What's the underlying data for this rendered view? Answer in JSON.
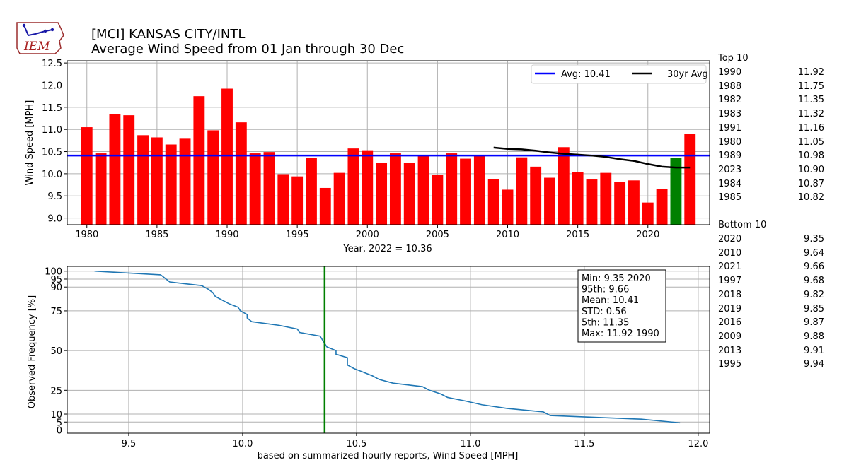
{
  "header": {
    "logo_text": "IEM",
    "title_line1": "[MCI] KANSAS CITY/INTL",
    "title_line2": "Average Wind Speed from 01 Jan through 30 Dec"
  },
  "colors": {
    "bar": "#ff0000",
    "highlight_bar": "#008000",
    "avg_line": "#0000ff",
    "avg30_line": "#000000",
    "cdf_line": "#1f77b4",
    "marker_line": "#008000"
  },
  "chart_data": [
    {
      "type": "bar",
      "ylabel": "Wind Speed [MPH]",
      "xlabel": "Year, 2022 = 10.36",
      "ylim": [
        8.85,
        12.55
      ],
      "xlim": [
        1978.6,
        2024.4
      ],
      "x_ticks": [
        1980,
        1985,
        1990,
        1995,
        2000,
        2005,
        2010,
        2015,
        2020
      ],
      "y_ticks": [
        9.0,
        9.5,
        10.0,
        10.5,
        11.0,
        11.5,
        12.0,
        12.5
      ],
      "grid": true,
      "legend_position": "top-right",
      "categories": [
        1980,
        1981,
        1982,
        1983,
        1984,
        1985,
        1986,
        1987,
        1988,
        1989,
        1990,
        1991,
        1992,
        1993,
        1994,
        1995,
        1996,
        1997,
        1998,
        1999,
        2000,
        2001,
        2002,
        2003,
        2004,
        2005,
        2006,
        2007,
        2008,
        2009,
        2010,
        2011,
        2012,
        2013,
        2014,
        2015,
        2016,
        2017,
        2018,
        2019,
        2020,
        2021,
        2022,
        2023
      ],
      "values": [
        11.05,
        10.46,
        11.35,
        11.32,
        10.87,
        10.82,
        10.66,
        10.79,
        11.75,
        10.98,
        11.92,
        11.16,
        10.46,
        10.49,
        9.99,
        9.94,
        10.35,
        9.68,
        10.02,
        10.57,
        10.53,
        10.25,
        10.46,
        10.24,
        10.41,
        9.98,
        10.46,
        10.34,
        10.41,
        9.88,
        9.64,
        10.37,
        10.16,
        9.91,
        10.6,
        10.04,
        9.87,
        10.02,
        9.82,
        9.85,
        9.35,
        9.66,
        10.36,
        10.9
      ],
      "highlight": {
        "year": 2022,
        "value": 10.36
      },
      "average": {
        "label": "Avg: 10.41",
        "value": 10.41
      },
      "series": [
        {
          "name": "30yr Avg",
          "x": [
            2009,
            2010,
            2011,
            2012,
            2013,
            2014,
            2015,
            2016,
            2017,
            2018,
            2019,
            2020,
            2021,
            2022,
            2023
          ],
          "values": [
            10.59,
            10.56,
            10.55,
            10.52,
            10.48,
            10.45,
            10.43,
            10.41,
            10.38,
            10.33,
            10.29,
            10.22,
            10.16,
            10.14,
            10.14
          ]
        }
      ]
    },
    {
      "type": "line",
      "ylabel": "Observed Frequency [%]",
      "xlabel": "based on summarized hourly reports, Wind Speed [MPH]",
      "xlim": [
        9.23,
        12.05
      ],
      "ylim": [
        -2,
        103
      ],
      "x_ticks": [
        9.5,
        10.0,
        10.5,
        11.0,
        11.5,
        12.0
      ],
      "y_ticks": [
        0,
        5,
        10,
        25,
        50,
        75,
        90,
        95,
        100
      ],
      "grid": true,
      "marker": {
        "x": 10.36
      },
      "series": [
        {
          "x": [
            9.35,
            9.64,
            9.66,
            9.68,
            9.82,
            9.85,
            9.87,
            9.88,
            9.91,
            9.94,
            9.98,
            9.99,
            10.02,
            10.02,
            10.04,
            10.16,
            10.24,
            10.25,
            10.34,
            10.35,
            10.36,
            10.37,
            10.41,
            10.41,
            10.46,
            10.46,
            10.46,
            10.49,
            10.53,
            10.57,
            10.6,
            10.66,
            10.79,
            10.82,
            10.87,
            10.9,
            10.98,
            11.05,
            11.16,
            11.32,
            11.35,
            11.75,
            11.92
          ],
          "y": [
            100,
            97.7,
            95.5,
            93.2,
            90.9,
            88.6,
            86.4,
            84.1,
            81.8,
            79.5,
            77.3,
            75.0,
            72.7,
            70.5,
            68.2,
            65.9,
            63.6,
            61.4,
            59.1,
            56.8,
            54.5,
            52.3,
            50.0,
            47.7,
            45.5,
            43.2,
            40.9,
            38.6,
            36.4,
            34.1,
            31.8,
            29.5,
            27.3,
            25.0,
            22.7,
            20.5,
            18.2,
            15.9,
            13.6,
            11.4,
            9.1,
            6.8,
            4.5
          ]
        }
      ]
    }
  ],
  "stats_box": {
    "lines": [
      "Min: 9.35 2020",
      "95th: 9.66",
      "Mean: 10.41",
      "STD: 0.56",
      "5th: 11.35",
      "Max: 11.92 1990"
    ]
  },
  "rankings": {
    "top_title": "Top 10",
    "top": [
      {
        "year": "1990",
        "value": "11.92"
      },
      {
        "year": "1988",
        "value": "11.75"
      },
      {
        "year": "1982",
        "value": "11.35"
      },
      {
        "year": "1983",
        "value": "11.32"
      },
      {
        "year": "1991",
        "value": "11.16"
      },
      {
        "year": "1980",
        "value": "11.05"
      },
      {
        "year": "1989",
        "value": "10.98"
      },
      {
        "year": "2023",
        "value": "10.90"
      },
      {
        "year": "1984",
        "value": "10.87"
      },
      {
        "year": "1985",
        "value": "10.82"
      }
    ],
    "bottom_title": "Bottom 10",
    "bottom": [
      {
        "year": "2020",
        "value": "9.35"
      },
      {
        "year": "2010",
        "value": "9.64"
      },
      {
        "year": "2021",
        "value": "9.66"
      },
      {
        "year": "1997",
        "value": "9.68"
      },
      {
        "year": "2018",
        "value": "9.82"
      },
      {
        "year": "2019",
        "value": "9.85"
      },
      {
        "year": "2016",
        "value": "9.87"
      },
      {
        "year": "2009",
        "value": "9.88"
      },
      {
        "year": "2013",
        "value": "9.91"
      },
      {
        "year": "1995",
        "value": "9.94"
      }
    ]
  }
}
